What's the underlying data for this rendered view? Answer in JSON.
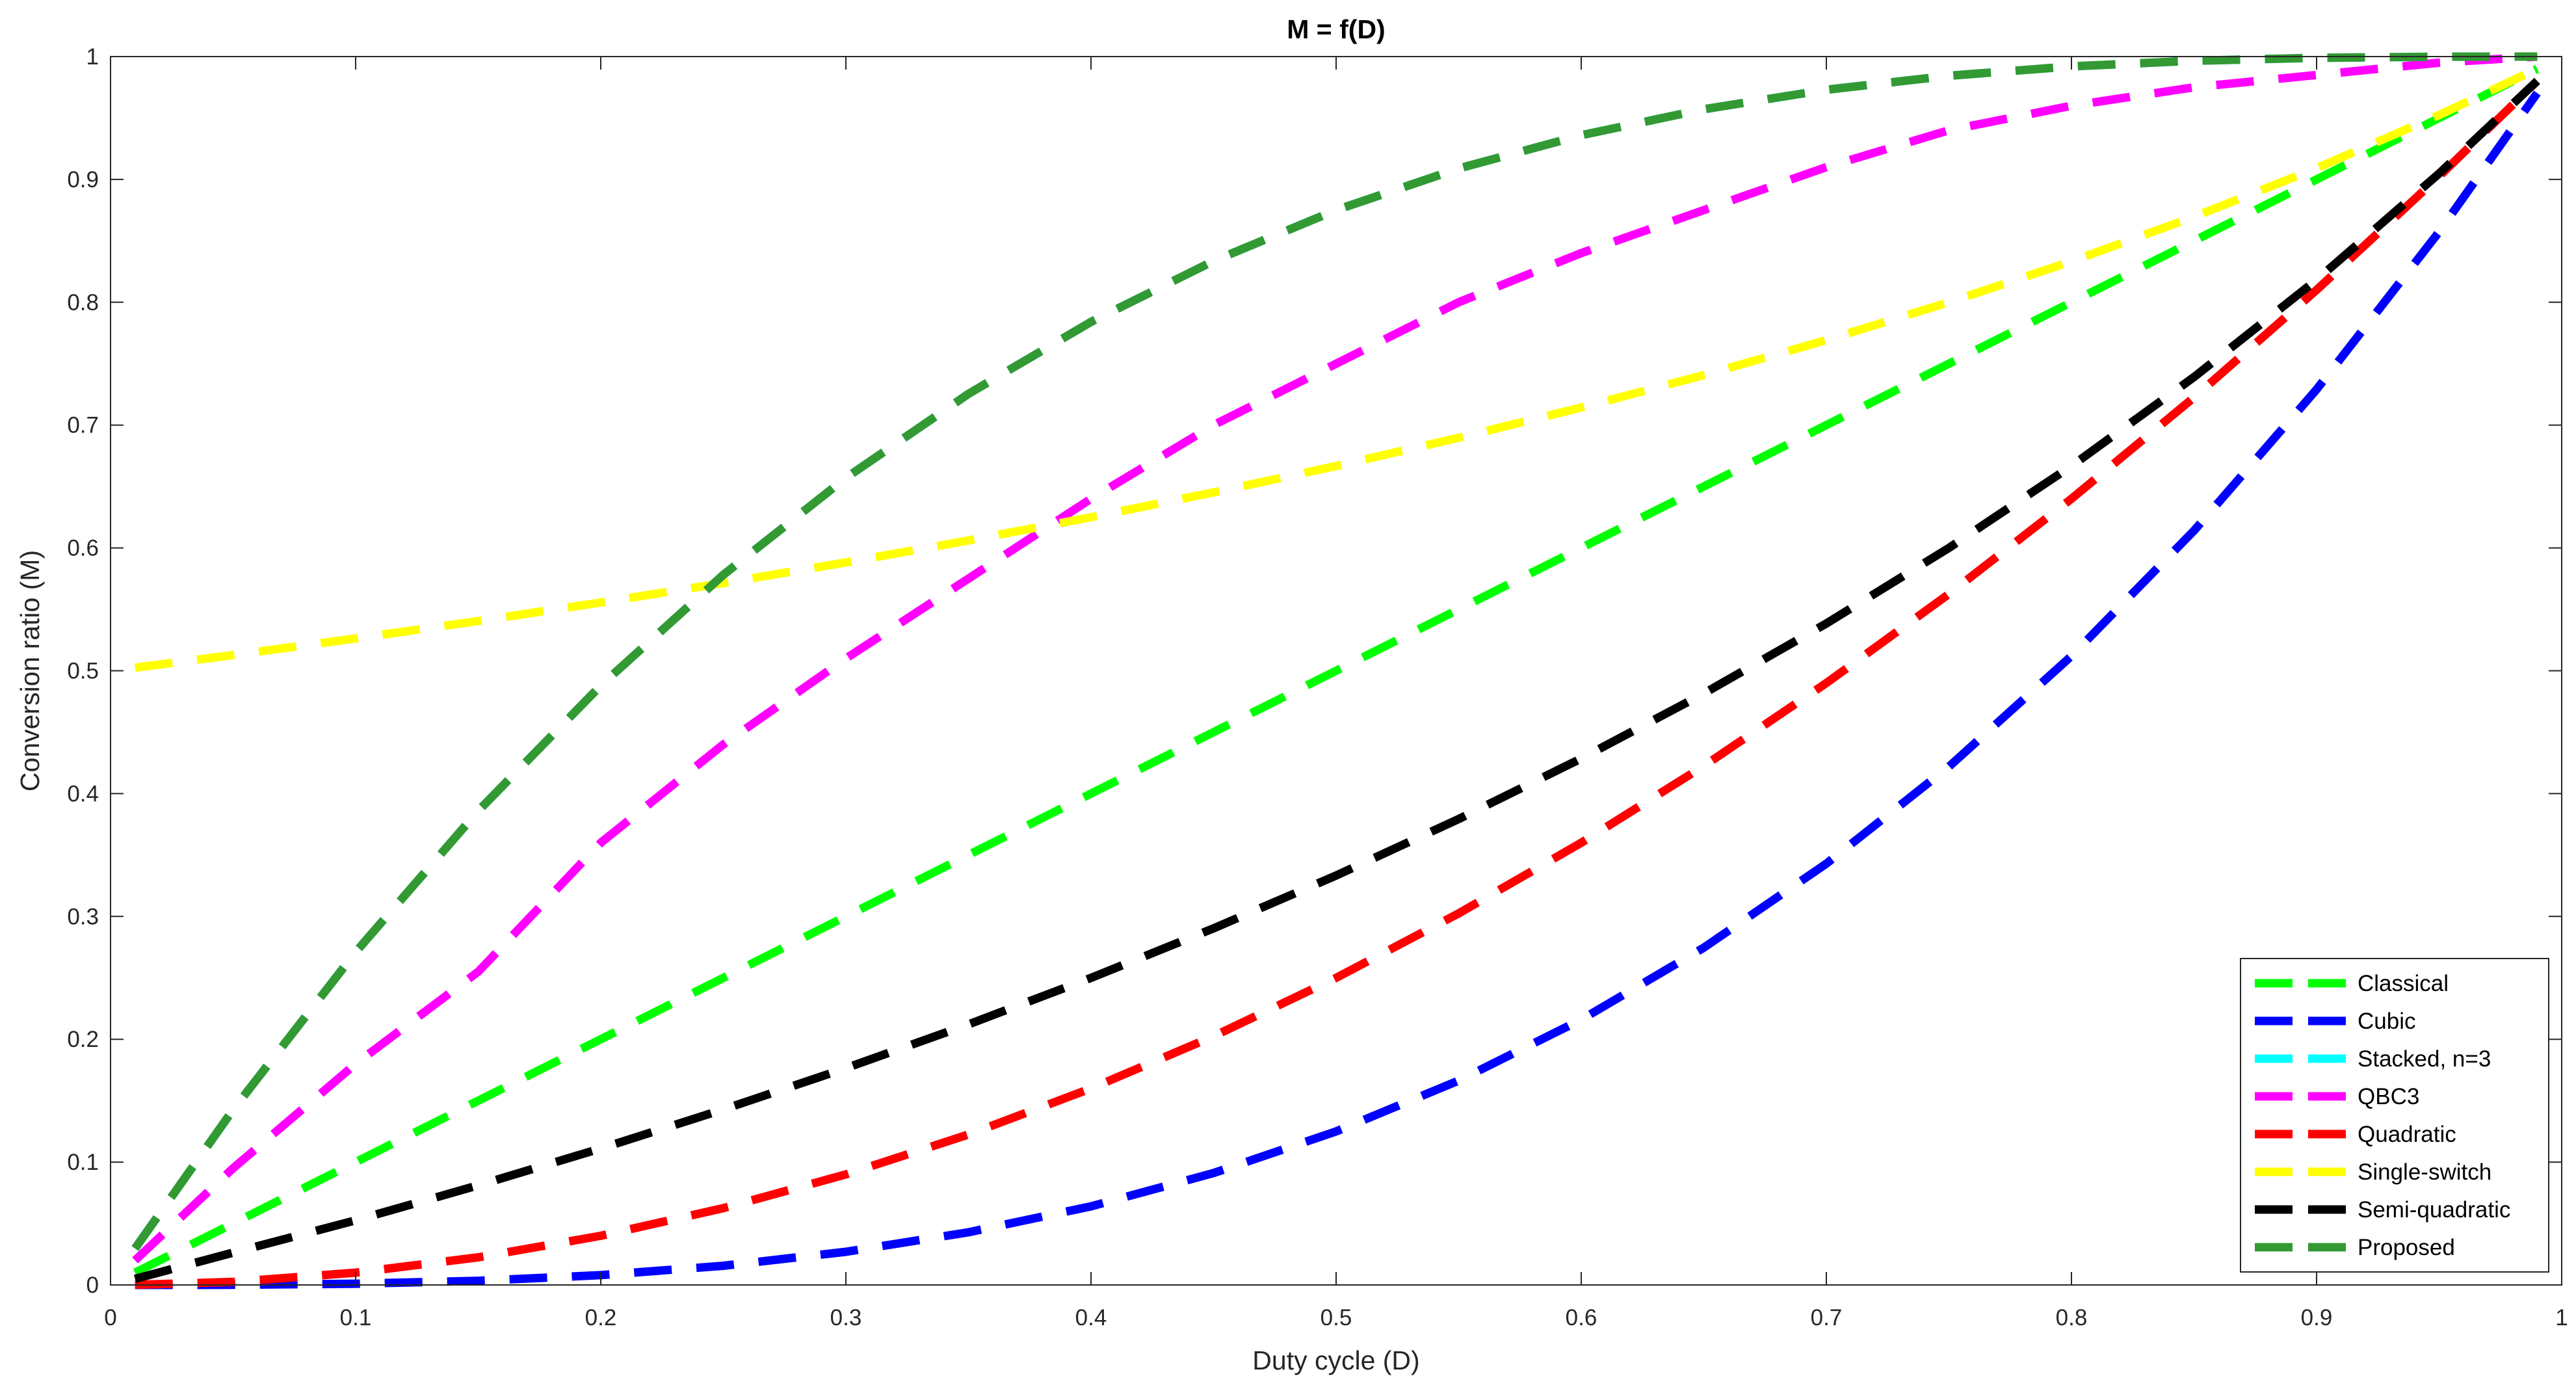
{
  "chart_data": {
    "type": "line",
    "title": "M = f(D)",
    "xlabel": "Duty cycle (D)",
    "ylabel": "Conversion ratio (M)",
    "xlim": [
      0,
      1
    ],
    "ylim": [
      0,
      1
    ],
    "xticks": [
      0,
      0.1,
      0.2,
      0.3,
      0.4,
      0.5,
      0.6,
      0.7,
      0.8,
      0.9,
      1
    ],
    "xtick_labels": [
      "0",
      "0.1",
      "0.2",
      "0.3",
      "0.4",
      "0.5",
      "0.6",
      "0.7",
      "0.8",
      "0.9",
      "1"
    ],
    "yticks": [
      0,
      0.1,
      0.2,
      0.3,
      0.4,
      0.5,
      0.6,
      0.7,
      0.8,
      0.9,
      1
    ],
    "ytick_labels": [
      "0",
      "0.1",
      "0.2",
      "0.3",
      "0.4",
      "0.5",
      "0.6",
      "0.7",
      "0.8",
      "0.9",
      "1"
    ],
    "grid": false,
    "legend_position": "bottom-right",
    "line_style": "dashed",
    "x": [
      0.01,
      0.05,
      0.1,
      0.15,
      0.2,
      0.25,
      0.3,
      0.35,
      0.4,
      0.45,
      0.5,
      0.55,
      0.6,
      0.65,
      0.7,
      0.75,
      0.8,
      0.85,
      0.9,
      0.95,
      0.99
    ],
    "series": [
      {
        "name": "Classical",
        "color": "#00ff00",
        "values": [
          0.01,
          0.05,
          0.1,
          0.15,
          0.2,
          0.25,
          0.3,
          0.35,
          0.4,
          0.45,
          0.5,
          0.55,
          0.6,
          0.65,
          0.7,
          0.75,
          0.8,
          0.85,
          0.9,
          0.95,
          0.99
        ]
      },
      {
        "name": "Cubic",
        "color": "#0000ff",
        "values": [
          0.0,
          0.0001,
          0.001,
          0.0034,
          0.008,
          0.0156,
          0.027,
          0.0429,
          0.064,
          0.0911,
          0.125,
          0.1664,
          0.216,
          0.2746,
          0.343,
          0.4219,
          0.512,
          0.6141,
          0.729,
          0.8574,
          0.9703
        ]
      },
      {
        "name": "Stacked, n=3",
        "color": "#00ffff",
        "values": [
          0.0297,
          0.1426,
          0.271,
          0.3859,
          0.488,
          0.5781,
          0.657,
          0.7254,
          0.784,
          0.8336,
          0.875,
          0.9089,
          0.936,
          0.9571,
          0.973,
          0.9844,
          0.992,
          0.9966,
          0.999,
          0.9999,
          1.0
        ]
      },
      {
        "name": "QBC3",
        "color": "#ff00ff",
        "values": [
          0.02,
          0.095,
          0.18,
          0.255,
          0.36,
          0.44,
          0.51,
          0.575,
          0.64,
          0.7,
          0.75,
          0.8,
          0.84,
          0.875,
          0.91,
          0.94,
          0.96,
          0.975,
          0.985,
          0.995,
          1.0
        ]
      },
      {
        "name": "Quadratic",
        "color": "#ff0000",
        "values": [
          0.0001,
          0.0025,
          0.01,
          0.0225,
          0.04,
          0.0625,
          0.09,
          0.1225,
          0.16,
          0.2025,
          0.25,
          0.3025,
          0.36,
          0.4225,
          0.49,
          0.5625,
          0.64,
          0.7225,
          0.81,
          0.9025,
          0.9801
        ]
      },
      {
        "name": "Single-switch",
        "color": "#ffff00",
        "values": [
          0.5025,
          0.5128,
          0.5263,
          0.5405,
          0.5556,
          0.5714,
          0.5882,
          0.6061,
          0.625,
          0.6452,
          0.6667,
          0.6897,
          0.7143,
          0.7407,
          0.7692,
          0.8,
          0.8333,
          0.8696,
          0.9091,
          0.9524,
          0.9901
        ]
      },
      {
        "name": "Semi-quadratic",
        "color": "#000000",
        "values": [
          0.005,
          0.0263,
          0.0526,
          0.0811,
          0.1111,
          0.1429,
          0.1765,
          0.2121,
          0.25,
          0.2903,
          0.3333,
          0.3793,
          0.4286,
          0.4815,
          0.5385,
          0.6,
          0.6667,
          0.7391,
          0.8182,
          0.9048,
          0.9802
        ]
      },
      {
        "name": "Proposed",
        "color": "#339933",
        "values": [
          0.0297,
          0.1426,
          0.271,
          0.3859,
          0.488,
          0.5781,
          0.657,
          0.7254,
          0.784,
          0.8336,
          0.875,
          0.9089,
          0.936,
          0.9571,
          0.973,
          0.9844,
          0.992,
          0.9966,
          0.999,
          0.9999,
          1.0
        ]
      }
    ]
  }
}
